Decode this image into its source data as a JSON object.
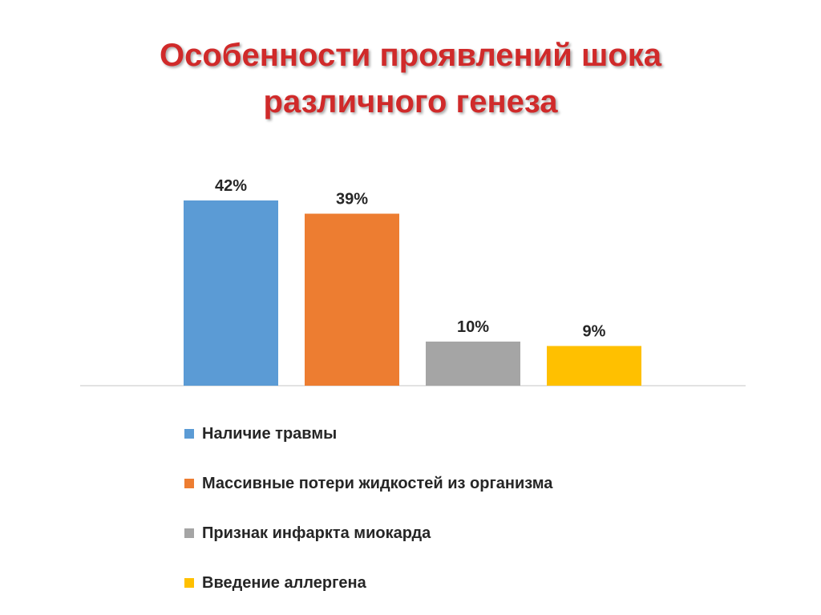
{
  "title": {
    "line1": "Особенности проявлений шока",
    "line2": "различного генеза"
  },
  "chart_data": {
    "type": "bar",
    "title": "Особенности проявлений шока различного генеза",
    "xlabel": "",
    "ylabel": "",
    "ylim": [
      0,
      45
    ],
    "grid": false,
    "legend_position": "bottom",
    "series": [
      {
        "name": "Наличие травмы",
        "value": 42,
        "label": "42%",
        "color": "#5b9bd5"
      },
      {
        "name": "Массивные потери жидкостей из организма",
        "value": 39,
        "label": "39%",
        "color": "#ed7d31"
      },
      {
        "name": "Признак инфаркта миокарда",
        "value": 10,
        "label": "10%",
        "color": "#a5a5a5"
      },
      {
        "name": "Введение аллергена",
        "value": 9,
        "label": "9%",
        "color": "#ffc000"
      }
    ]
  }
}
